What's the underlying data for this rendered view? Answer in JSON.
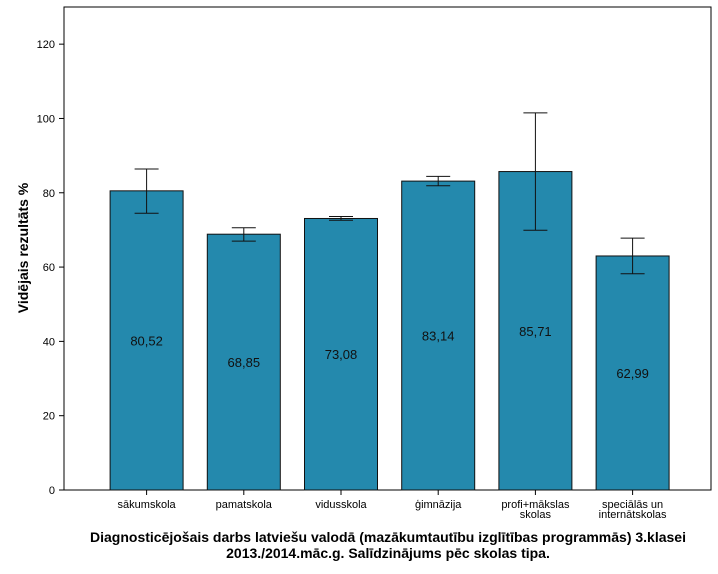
{
  "chart_data": {
    "type": "bar",
    "categories": [
      [
        "sākumskola"
      ],
      [
        "pamatskola"
      ],
      [
        "vidusskola"
      ],
      [
        "ģimnāzija"
      ],
      [
        "profi+mākslas",
        "skolas"
      ],
      [
        "speciālās un",
        "internātskolas"
      ]
    ],
    "values": [
      80.52,
      68.85,
      73.08,
      83.14,
      85.71,
      62.99
    ],
    "value_labels": [
      "80,52",
      "68,85",
      "73,08",
      "83,14",
      "85,71",
      "62,99"
    ],
    "error_bars": [
      [
        74.5,
        86.4
      ],
      [
        67.0,
        70.6
      ],
      [
        72.6,
        73.6
      ],
      [
        81.9,
        84.4
      ],
      [
        69.9,
        101.5
      ],
      [
        58.2,
        67.8
      ]
    ],
    "ylim": [
      0,
      130
    ],
    "yticks": [
      0,
      20,
      40,
      60,
      80,
      100,
      120
    ],
    "ylabel": "Vidējais rezultāts %",
    "xlabel": "",
    "title_lines": [
      "Diagnosticējošais darbs latviešu valodā (mazākumtautību izglītības programmās) 3.klasei",
      "2013./2014.māc.g. Salīdzinājums pēc skolas tipa."
    ],
    "colors": {
      "bar": "#2489ad",
      "bar_stroke": "#111111",
      "axis": "#000000",
      "frame": "#000000"
    }
  }
}
